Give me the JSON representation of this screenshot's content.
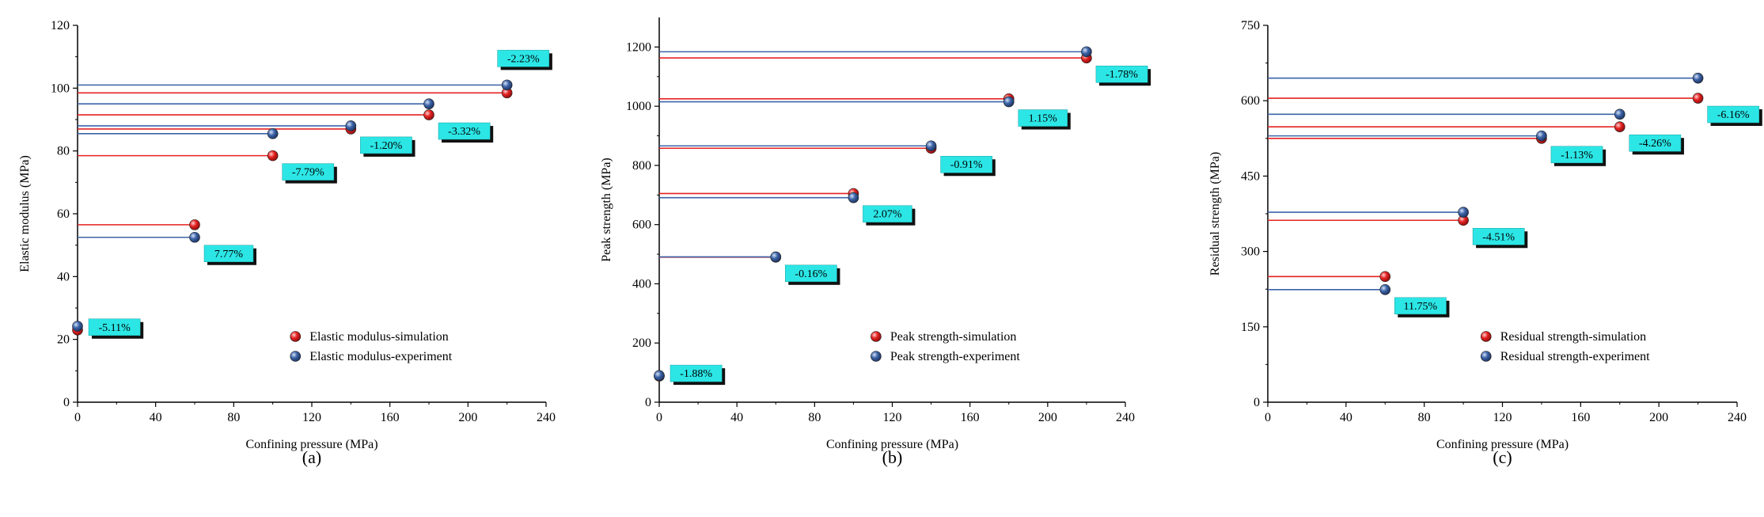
{
  "colors": {
    "simulation": "#e52222",
    "experiment": "#3c64a8",
    "label_box": "#2ce6e6",
    "label_shadow": "#111111"
  },
  "chart_data": [
    {
      "type": "scatter",
      "panel_label": "(a)",
      "xlabel": "Confining pressure (MPa)",
      "ylabel": "Elastic modulus (MPa)",
      "xlim": [
        0,
        240
      ],
      "ylim": [
        0,
        120
      ],
      "xticks": [
        0,
        40,
        80,
        120,
        160,
        200,
        240
      ],
      "yticks": [
        0,
        20,
        40,
        60,
        80,
        100,
        120
      ],
      "legend_position": "bottom-right",
      "series": [
        {
          "name": "Elastic modulus-simulation",
          "key": "simulation",
          "x": [
            0,
            60,
            100,
            140,
            180,
            220
          ],
          "y": [
            23.0,
            56.5,
            78.5,
            87.0,
            91.5,
            98.5
          ]
        },
        {
          "name": "Elastic modulus-experiment",
          "key": "experiment",
          "x": [
            0,
            60,
            100,
            140,
            180,
            220
          ],
          "y": [
            24.2,
            52.5,
            85.5,
            88.0,
            95.0,
            101.0
          ]
        }
      ],
      "annotations": [
        {
          "text": "-5.11%",
          "x": 0
        },
        {
          "text": "7.77%",
          "x": 60
        },
        {
          "text": "-7.79%",
          "x": 100
        },
        {
          "text": "-1.20%",
          "x": 140
        },
        {
          "text": "-3.32%",
          "x": 180
        },
        {
          "text": "-2.23%",
          "x": 220
        }
      ]
    },
    {
      "type": "scatter",
      "panel_label": "(b)",
      "xlabel": "Confining pressure (MPa)",
      "ylabel": "Peak strength (MPa)",
      "xlim": [
        0,
        240
      ],
      "ylim": [
        0,
        1300
      ],
      "xticks": [
        0,
        40,
        80,
        120,
        160,
        200,
        240
      ],
      "yticks": [
        0,
        200,
        400,
        600,
        800,
        1000,
        1200
      ],
      "legend_position": "bottom-right",
      "series": [
        {
          "name": "Peak strength-simulation",
          "key": "simulation",
          "x": [
            0,
            60,
            100,
            140,
            180,
            220
          ],
          "y": [
            88,
            490,
            705,
            858,
            1025,
            1163
          ]
        },
        {
          "name": "Peak strength-experiment",
          "key": "experiment",
          "x": [
            0,
            60,
            100,
            140,
            180,
            220
          ],
          "y": [
            90,
            491,
            691,
            866,
            1015,
            1184
          ]
        }
      ],
      "annotations": [
        {
          "text": "-1.88%",
          "x": 0
        },
        {
          "text": "-0.16%",
          "x": 60
        },
        {
          "text": "2.07%",
          "x": 100
        },
        {
          "text": "-0.91%",
          "x": 140
        },
        {
          "text": "1.15%",
          "x": 180
        },
        {
          "text": "-1.78%",
          "x": 220
        }
      ]
    },
    {
      "type": "scatter",
      "panel_label": "(c)",
      "xlabel": "Confining pressure (MPa)",
      "ylabel": "Residual strength (MPa)",
      "xlim": [
        0,
        240
      ],
      "ylim": [
        0,
        750
      ],
      "xticks": [
        0,
        40,
        80,
        120,
        160,
        200,
        240
      ],
      "yticks": [
        0,
        150,
        300,
        450,
        600,
        750
      ],
      "legend_position": "bottom-right",
      "series": [
        {
          "name": "Residual strength-simulation",
          "key": "simulation",
          "x": [
            60,
            100,
            140,
            180,
            220
          ],
          "y": [
            250,
            362,
            525,
            548,
            605
          ]
        },
        {
          "name": "Residual strength-experiment",
          "key": "experiment",
          "x": [
            60,
            100,
            140,
            180,
            220
          ],
          "y": [
            224,
            378,
            530,
            573,
            645
          ]
        }
      ],
      "annotations": [
        {
          "text": "11.75%",
          "x": 60
        },
        {
          "text": "-4.51%",
          "x": 100
        },
        {
          "text": "-1.13%",
          "x": 140
        },
        {
          "text": "-4.26%",
          "x": 180
        },
        {
          "text": "-6.16%",
          "x": 220
        }
      ]
    }
  ]
}
